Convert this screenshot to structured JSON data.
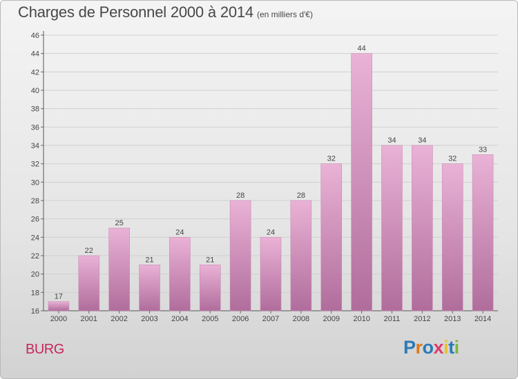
{
  "title": "Charges de Personnel 2000 à 2014",
  "subtitle": "(en milliers d'€)",
  "town": "BURG",
  "logo": {
    "text": "Proxiti",
    "colors": [
      "#2a7ab8",
      "#e07818",
      "#2a7ab8",
      "#e03a6a",
      "#e8c21e",
      "#2a7ab8",
      "#7ab93a"
    ]
  },
  "colors": {
    "bar_light": "#eab2d6",
    "bar_dark": "#b06d9c",
    "frame_border": "#b9b9b9",
    "gridline": "#d0d0d0",
    "town_text": "#c6265a"
  },
  "chart_data": {
    "type": "bar",
    "title": "Charges de Personnel 2000 à 2014",
    "subtitle": "(en milliers d'€)",
    "categories": [
      "2000",
      "2001",
      "2002",
      "2003",
      "2004",
      "2005",
      "2006",
      "2007",
      "2008",
      "2009",
      "2010",
      "2011",
      "2012",
      "2013",
      "2014"
    ],
    "values": [
      17,
      22,
      25,
      21,
      24,
      21,
      28,
      24,
      28,
      32,
      44,
      34,
      34,
      32,
      33
    ],
    "y_ticks": [
      16,
      18,
      20,
      22,
      24,
      26,
      28,
      30,
      32,
      34,
      36,
      38,
      40,
      42,
      44,
      46
    ],
    "ylim": [
      16,
      46
    ],
    "grid": true,
    "data_labels": true
  }
}
